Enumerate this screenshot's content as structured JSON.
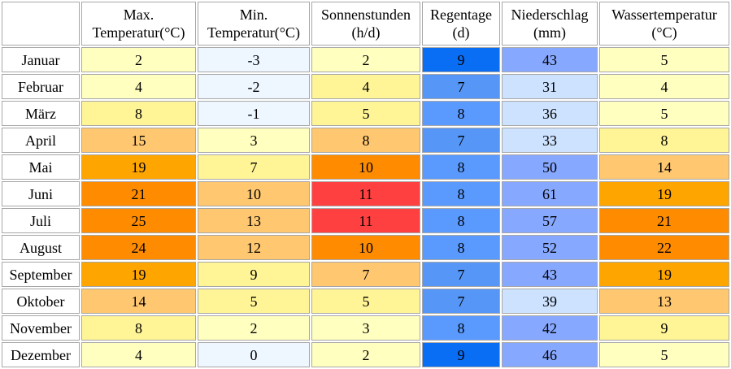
{
  "columns": [
    {
      "line1": "Max.",
      "line2": "Temperatur(°C)"
    },
    {
      "line1": "Min.",
      "line2": "Temperatur(°C)"
    },
    {
      "line1": "Sonnenstunden",
      "line2": "(h/d)"
    },
    {
      "line1": "Regentage",
      "line2": "(d)"
    },
    {
      "line1": "Niederschlag",
      "line2": "(mm)"
    },
    {
      "line1": "Wassertemperatur",
      "line2": "(°C)"
    }
  ],
  "rows": [
    {
      "month": "Januar",
      "values": [
        "2",
        "-3",
        "2",
        "9",
        "43",
        "5"
      ],
      "colors": [
        "#ffffc0",
        "#eef6ff",
        "#ffffc0",
        "#0a6ef5",
        "#87a8ff",
        "#ffffc0"
      ]
    },
    {
      "month": "Februar",
      "values": [
        "4",
        "-2",
        "4",
        "7",
        "31",
        "4"
      ],
      "colors": [
        "#ffffc0",
        "#eef6ff",
        "#fff496",
        "#5596f7",
        "#cce2ff",
        "#ffffc0"
      ]
    },
    {
      "month": "März",
      "values": [
        "8",
        "-1",
        "5",
        "8",
        "36",
        "5"
      ],
      "colors": [
        "#fff496",
        "#eef6ff",
        "#fff496",
        "#5a9aff",
        "#cce2ff",
        "#ffffc0"
      ]
    },
    {
      "month": "April",
      "values": [
        "15",
        "3",
        "8",
        "7",
        "33",
        "8"
      ],
      "colors": [
        "#ffc870",
        "#ffffc0",
        "#ffc870",
        "#5596f7",
        "#cce2ff",
        "#fff496"
      ]
    },
    {
      "month": "Mai",
      "values": [
        "19",
        "7",
        "10",
        "8",
        "50",
        "14"
      ],
      "colors": [
        "#ffa500",
        "#fff496",
        "#ff8c00",
        "#5a9aff",
        "#87a8ff",
        "#ffc870"
      ]
    },
    {
      "month": "Juni",
      "values": [
        "21",
        "10",
        "11",
        "8",
        "61",
        "19"
      ],
      "colors": [
        "#ff8c00",
        "#ffc870",
        "#ff4040",
        "#5a9aff",
        "#87a8ff",
        "#ffa500"
      ]
    },
    {
      "month": "Juli",
      "values": [
        "25",
        "13",
        "11",
        "8",
        "57",
        "21"
      ],
      "colors": [
        "#ff8c00",
        "#ffc870",
        "#ff4040",
        "#5a9aff",
        "#87a8ff",
        "#ff8c00"
      ]
    },
    {
      "month": "August",
      "values": [
        "24",
        "12",
        "10",
        "8",
        "52",
        "22"
      ],
      "colors": [
        "#ff8c00",
        "#ffc870",
        "#ff8c00",
        "#5a9aff",
        "#87a8ff",
        "#ff8c00"
      ]
    },
    {
      "month": "September",
      "values": [
        "19",
        "9",
        "7",
        "7",
        "43",
        "19"
      ],
      "colors": [
        "#ffa500",
        "#fff496",
        "#ffc870",
        "#5596f7",
        "#87a8ff",
        "#ffa500"
      ]
    },
    {
      "month": "Oktober",
      "values": [
        "14",
        "5",
        "5",
        "7",
        "39",
        "13"
      ],
      "colors": [
        "#ffc870",
        "#fff496",
        "#fff496",
        "#5596f7",
        "#cce2ff",
        "#ffc870"
      ]
    },
    {
      "month": "November",
      "values": [
        "8",
        "2",
        "3",
        "8",
        "42",
        "9"
      ],
      "colors": [
        "#fff496",
        "#ffffc0",
        "#ffffc0",
        "#5a9aff",
        "#87a8ff",
        "#fff496"
      ]
    },
    {
      "month": "Dezember",
      "values": [
        "4",
        "0",
        "2",
        "9",
        "46",
        "5"
      ],
      "colors": [
        "#ffffc0",
        "#eef6ff",
        "#ffffc0",
        "#0a6ef5",
        "#87a8ff",
        "#ffffc0"
      ]
    }
  ]
}
